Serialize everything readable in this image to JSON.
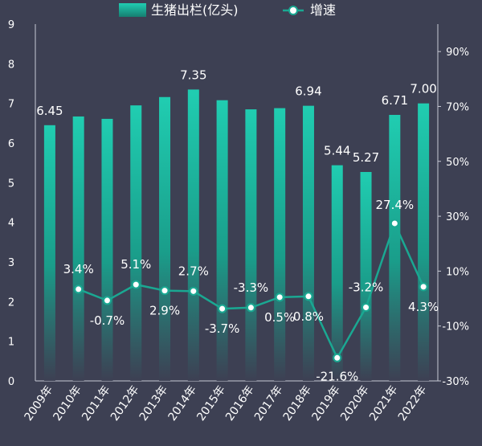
{
  "chart_data": {
    "type": "bar",
    "categories": [
      "2009年",
      "2010年",
      "2011年",
      "2012年",
      "2013年",
      "2014年",
      "2015年",
      "2016年",
      "2017年",
      "2018年",
      "2019年",
      "2020年",
      "2021年",
      "2022年"
    ],
    "series": [
      {
        "name": "生猪出栏(亿头)",
        "type": "bar",
        "axis": "left",
        "values": [
          6.45,
          6.67,
          6.61,
          6.95,
          7.16,
          7.35,
          7.08,
          6.85,
          6.88,
          6.94,
          5.44,
          5.27,
          6.71,
          7.0
        ],
        "labels": [
          "6.45",
          "",
          "",
          "",
          "",
          "7.35",
          "",
          "",
          "",
          "6.94",
          "5.44",
          "5.27",
          "6.71",
          "7.00"
        ]
      },
      {
        "name": "增速",
        "type": "line",
        "axis": "right",
        "values": [
          null,
          3.4,
          -0.7,
          5.1,
          2.9,
          2.7,
          -3.7,
          -3.3,
          0.5,
          0.8,
          -21.6,
          -3.2,
          27.4,
          4.3
        ],
        "labels": [
          "",
          "3.4%",
          "-0.7%",
          "5.1%",
          "2.9%",
          "2.7%",
          "-3.7%",
          "-3.3%",
          "0.5%",
          "0.8%",
          "-21.6%",
          "-3.2%",
          "27.4%",
          "4.3%"
        ]
      }
    ],
    "left_axis": {
      "min": 0,
      "max": 9,
      "ticks": [
        "0",
        "1",
        "2",
        "3",
        "4",
        "5",
        "6",
        "7",
        "8",
        "9"
      ]
    },
    "right_axis": {
      "min": -30,
      "max": 100,
      "ticks": [
        "-30%",
        "-10%",
        "10%",
        "30%",
        "50%",
        "70%",
        "90%"
      ],
      "tick_values": [
        -30,
        -10,
        10,
        30,
        50,
        70,
        90
      ]
    },
    "legend": {
      "position": "top-center",
      "items": [
        "生猪出栏(亿头)",
        "增速"
      ]
    },
    "grid": false,
    "colors": {
      "background": "#3d4053",
      "bar_top": "#1fc8ad",
      "bar_bottom": "#3d4053",
      "line": "#1aa892",
      "marker_fill": "#ffffff",
      "text": "#ffffff",
      "axis": "#c8cad4"
    }
  }
}
